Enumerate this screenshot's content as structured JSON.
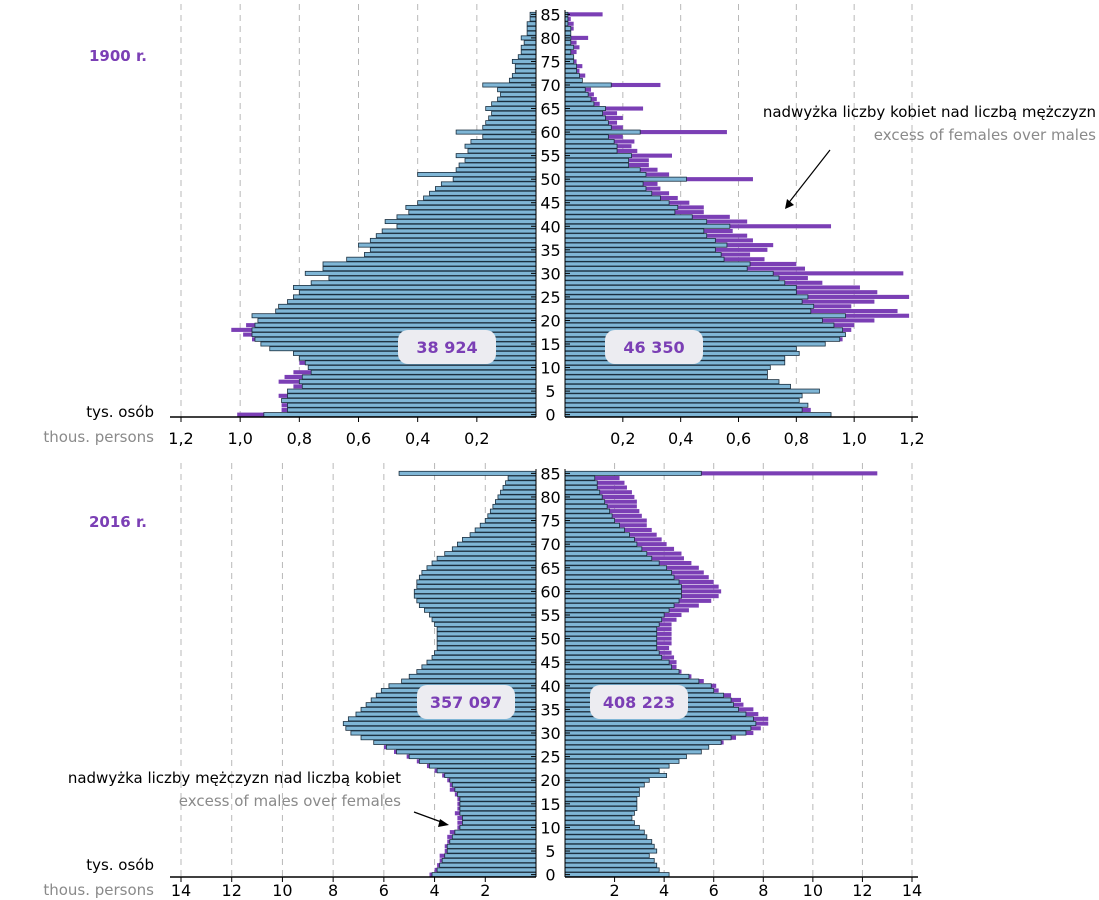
{
  "colors": {
    "bar": "#7fb6d6",
    "bar_stroke": "#1b2f3f",
    "excess": "#7b3fb5",
    "grid": "#b8b8b8",
    "axis": "#000000",
    "age_axis_bg": "#ffffff",
    "total_box": "#ececf1",
    "total_text": "#7b3fb5",
    "title": "#7b3fb5",
    "annot_main": "#000000",
    "annot_sub": "#8a8a8a"
  },
  "annotations": {
    "top_pl": "nadwyżka liczby kobiet nad liczbą mężczyzn",
    "top_en": "excess of females over males",
    "bottom_pl": "nadwyżka liczby mężczyzn nad liczbą kobiet",
    "bottom_en": "excess of males over females"
  },
  "chart_data": [
    {
      "type": "bar",
      "subtype": "population-pyramid",
      "title": "1900 r.",
      "unit_pl": "tys. osób",
      "unit_en": "thous. persons",
      "total_left": "38 924",
      "total_right": "46 350",
      "age_ticks": [
        0,
        5,
        10,
        15,
        20,
        25,
        30,
        35,
        40,
        45,
        50,
        55,
        60,
        65,
        70,
        75,
        80,
        85
      ],
      "axis_ticks": [
        0.2,
        0.4,
        0.6,
        0.8,
        1.0,
        1.2
      ],
      "axis_tick_labels": [
        "0,2",
        "0,4",
        "0,6",
        "0,8",
        "1,0",
        "1,2"
      ],
      "xlim": [
        0,
        1.2
      ],
      "ages": [
        0,
        1,
        2,
        3,
        4,
        5,
        6,
        7,
        8,
        9,
        10,
        11,
        12,
        13,
        14,
        15,
        16,
        17,
        18,
        19,
        20,
        21,
        22,
        23,
        24,
        25,
        26,
        27,
        28,
        29,
        30,
        31,
        32,
        33,
        34,
        35,
        36,
        37,
        38,
        39,
        40,
        41,
        42,
        43,
        44,
        45,
        46,
        47,
        48,
        49,
        50,
        51,
        52,
        53,
        54,
        55,
        56,
        57,
        58,
        59,
        60,
        61,
        62,
        63,
        64,
        65,
        66,
        67,
        68,
        69,
        70,
        71,
        72,
        73,
        74,
        75,
        76,
        77,
        78,
        79,
        80,
        81,
        82,
        83,
        84,
        85
      ],
      "males": [
        0.92,
        0.84,
        0.84,
        0.86,
        0.84,
        0.84,
        0.79,
        0.8,
        0.79,
        0.76,
        0.77,
        0.78,
        0.8,
        0.82,
        0.9,
        0.93,
        0.95,
        0.96,
        0.96,
        0.95,
        0.94,
        0.96,
        0.88,
        0.87,
        0.84,
        0.82,
        0.8,
        0.82,
        0.76,
        0.7,
        0.78,
        0.72,
        0.72,
        0.64,
        0.58,
        0.56,
        0.6,
        0.56,
        0.54,
        0.52,
        0.47,
        0.51,
        0.47,
        0.43,
        0.44,
        0.4,
        0.38,
        0.36,
        0.34,
        0.32,
        0.28,
        0.4,
        0.27,
        0.26,
        0.24,
        0.27,
        0.23,
        0.24,
        0.22,
        0.18,
        0.27,
        0.18,
        0.17,
        0.16,
        0.15,
        0.17,
        0.15,
        0.13,
        0.12,
        0.13,
        0.18,
        0.09,
        0.08,
        0.07,
        0.07,
        0.08,
        0.06,
        0.05,
        0.05,
        0.04,
        0.05,
        0.03,
        0.03,
        0.03,
        0.02,
        0.02
      ],
      "females": [
        0.92,
        0.82,
        0.84,
        0.81,
        0.82,
        0.88,
        0.78,
        0.74,
        0.7,
        0.7,
        0.71,
        0.76,
        0.76,
        0.81,
        0.8,
        0.9,
        0.95,
        0.97,
        0.96,
        0.93,
        0.89,
        0.97,
        0.85,
        0.86,
        0.82,
        0.84,
        0.8,
        0.8,
        0.76,
        0.74,
        0.72,
        0.63,
        0.64,
        0.55,
        0.54,
        0.52,
        0.56,
        0.52,
        0.49,
        0.48,
        0.57,
        0.49,
        0.44,
        0.38,
        0.39,
        0.36,
        0.33,
        0.3,
        0.28,
        0.27,
        0.42,
        0.28,
        0.26,
        0.22,
        0.22,
        0.23,
        0.18,
        0.18,
        0.17,
        0.15,
        0.26,
        0.16,
        0.15,
        0.14,
        0.13,
        0.14,
        0.1,
        0.09,
        0.08,
        0.07,
        0.16,
        0.06,
        0.05,
        0.04,
        0.04,
        0.03,
        0.03,
        0.02,
        0.03,
        0.02,
        0.02,
        0.02,
        0.02,
        0.01,
        0.01,
        0.01
      ],
      "excess_female": [
        0,
        0.03,
        0,
        0,
        0,
        0,
        0,
        0,
        0,
        0,
        0,
        0,
        0,
        0,
        0,
        0,
        0.01,
        0,
        0.03,
        0.07,
        0.18,
        0.22,
        0.3,
        0.13,
        0.25,
        0.35,
        0.28,
        0.22,
        0.13,
        0.1,
        0.45,
        0.2,
        0.16,
        0.14,
        0.1,
        0.18,
        0.16,
        0.13,
        0.14,
        0.1,
        0.35,
        0.14,
        0.13,
        0.1,
        0.09,
        0.07,
        0.06,
        0.06,
        0.05,
        0.05,
        0.23,
        0.08,
        0.06,
        0.07,
        0.07,
        0.14,
        0.07,
        0.05,
        0.07,
        0.05,
        0.3,
        0.04,
        0.03,
        0.06,
        0.05,
        0.13,
        0.02,
        0.02,
        0.02,
        0.02,
        0.17,
        0.0,
        0.02,
        0.01,
        0.02,
        0.01,
        0.0,
        0.02,
        0.02,
        0.02,
        0.06,
        0.0,
        0.01,
        0.02,
        0.01,
        0.12
      ],
      "excess_male": [
        0.09,
        0.02,
        0.02,
        0,
        0.03,
        0,
        0.03,
        0.07,
        0.06,
        0.06,
        0,
        0.02,
        0,
        0,
        0,
        0,
        0.01,
        0.03,
        0.07,
        0.03,
        0,
        0,
        0,
        0,
        0,
        0,
        0,
        0,
        0,
        0,
        0,
        0,
        0,
        0,
        0,
        0,
        0,
        0,
        0,
        0,
        0,
        0,
        0,
        0,
        0,
        0,
        0,
        0,
        0,
        0,
        0,
        0,
        0,
        0,
        0,
        0,
        0,
        0,
        0,
        0,
        0,
        0,
        0,
        0,
        0,
        0,
        0,
        0,
        0,
        0,
        0,
        0,
        0,
        0,
        0,
        0,
        0,
        0,
        0,
        0,
        0,
        0,
        0,
        0,
        0,
        0
      ]
    },
    {
      "type": "bar",
      "subtype": "population-pyramid",
      "title": "2016 r.",
      "unit_pl": "tys. osób",
      "unit_en": "thous. persons",
      "total_left": "357 097",
      "total_right": "408 223",
      "age_ticks": [
        0,
        5,
        10,
        15,
        20,
        25,
        30,
        35,
        40,
        45,
        50,
        55,
        60,
        65,
        70,
        75,
        80,
        85
      ],
      "axis_ticks": [
        2,
        4,
        6,
        8,
        10,
        12,
        14
      ],
      "axis_tick_labels": [
        "2",
        "4",
        "6",
        "8",
        "10",
        "12",
        "14"
      ],
      "xlim": [
        0,
        14
      ],
      "ages": [
        0,
        1,
        2,
        3,
        4,
        5,
        6,
        7,
        8,
        9,
        10,
        11,
        12,
        13,
        14,
        15,
        16,
        17,
        18,
        19,
        20,
        21,
        22,
        23,
        24,
        25,
        26,
        27,
        28,
        29,
        30,
        31,
        32,
        33,
        34,
        35,
        36,
        37,
        38,
        39,
        40,
        41,
        42,
        43,
        44,
        45,
        46,
        47,
        48,
        49,
        50,
        51,
        52,
        53,
        54,
        55,
        56,
        57,
        58,
        59,
        60,
        61,
        62,
        63,
        64,
        65,
        66,
        67,
        68,
        69,
        70,
        71,
        72,
        73,
        74,
        75,
        76,
        77,
        78,
        79,
        80,
        81,
        82,
        83,
        84,
        85
      ],
      "males": [
        4.1,
        3.9,
        3.8,
        3.7,
        3.6,
        3.5,
        3.5,
        3.4,
        3.3,
        3.2,
        3.0,
        2.9,
        2.9,
        3.0,
        3.0,
        3.0,
        3.0,
        3.1,
        3.2,
        3.3,
        3.4,
        3.6,
        3.9,
        4.2,
        4.6,
        5.0,
        5.5,
        5.9,
        6.4,
        6.9,
        7.3,
        7.5,
        7.6,
        7.4,
        7.1,
        6.9,
        6.7,
        6.5,
        6.3,
        6.1,
        5.8,
        5.3,
        5.0,
        4.7,
        4.5,
        4.3,
        4.1,
        4.0,
        3.9,
        3.9,
        3.9,
        3.9,
        3.9,
        4.0,
        4.1,
        4.2,
        4.4,
        4.6,
        4.7,
        4.8,
        4.8,
        4.7,
        4.7,
        4.6,
        4.5,
        4.3,
        4.1,
        3.9,
        3.6,
        3.3,
        3.1,
        2.9,
        2.6,
        2.4,
        2.2,
        2.0,
        1.9,
        1.8,
        1.7,
        1.6,
        1.5,
        1.4,
        1.3,
        1.2,
        1.1,
        5.4
      ],
      "females": [
        4.2,
        3.8,
        3.7,
        3.6,
        3.4,
        3.7,
        3.6,
        3.5,
        3.3,
        3.2,
        3.0,
        2.8,
        2.7,
        2.8,
        2.9,
        2.9,
        2.9,
        3.0,
        3.0,
        3.2,
        3.4,
        4.1,
        3.8,
        4.2,
        4.6,
        4.9,
        5.5,
        5.8,
        6.3,
        6.7,
        7.3,
        7.5,
        7.7,
        7.6,
        7.3,
        7.0,
        6.8,
        6.7,
        6.4,
        6.0,
        5.9,
        5.4,
        5.0,
        4.6,
        4.3,
        4.2,
        3.9,
        3.8,
        3.7,
        3.7,
        3.7,
        3.7,
        3.7,
        3.8,
        3.9,
        4.0,
        4.2,
        4.4,
        4.6,
        4.7,
        4.7,
        4.7,
        4.6,
        4.4,
        4.3,
        4.1,
        3.8,
        3.5,
        3.3,
        3.1,
        2.9,
        2.8,
        2.6,
        2.4,
        2.2,
        2.0,
        1.9,
        1.8,
        1.7,
        1.6,
        1.5,
        1.4,
        1.3,
        1.3,
        1.2,
        5.5
      ],
      "excess_female": [
        0,
        0,
        0,
        0,
        0,
        0,
        0,
        0,
        0,
        0,
        0,
        0,
        0,
        0,
        0,
        0,
        0,
        0,
        0,
        0,
        0,
        0,
        0,
        0,
        0,
        0,
        0,
        0,
        0.1,
        0.2,
        0.3,
        0.4,
        0.5,
        0.6,
        0.5,
        0.6,
        0.4,
        0.4,
        0.3,
        0.2,
        0.2,
        0.2,
        0.1,
        0.1,
        0.2,
        0.3,
        0.5,
        0.5,
        0.5,
        0.6,
        0.6,
        0.6,
        0.6,
        0.5,
        0.6,
        0.7,
        0.8,
        1.0,
        1.3,
        1.5,
        1.6,
        1.5,
        1.4,
        1.4,
        1.3,
        1.3,
        1.3,
        1.3,
        1.4,
        1.3,
        1.2,
        1.1,
        1.1,
        1.1,
        1.1,
        1.3,
        1.2,
        1.2,
        1.2,
        1.3,
        1.3,
        1.3,
        1.2,
        1.1,
        1.0,
        7.1
      ],
      "excess_male": [
        0.1,
        0.1,
        0.1,
        0.1,
        0.2,
        0.1,
        0.1,
        0.1,
        0.2,
        0.2,
        0.1,
        0.2,
        0.2,
        0.2,
        0.1,
        0.1,
        0.1,
        0.1,
        0.2,
        0.1,
        0.1,
        0.1,
        0.1,
        0.1,
        0.1,
        0.1,
        0.1,
        0.1,
        0,
        0,
        0,
        0,
        0,
        0,
        0,
        0,
        0,
        0,
        0,
        0,
        0,
        0,
        0,
        0,
        0,
        0,
        0,
        0,
        0,
        0,
        0,
        0,
        0,
        0,
        0,
        0,
        0,
        0,
        0,
        0,
        0,
        0,
        0,
        0,
        0,
        0,
        0,
        0,
        0,
        0,
        0,
        0,
        0,
        0,
        0,
        0,
        0,
        0,
        0,
        0,
        0,
        0,
        0,
        0,
        0,
        0
      ]
    }
  ]
}
